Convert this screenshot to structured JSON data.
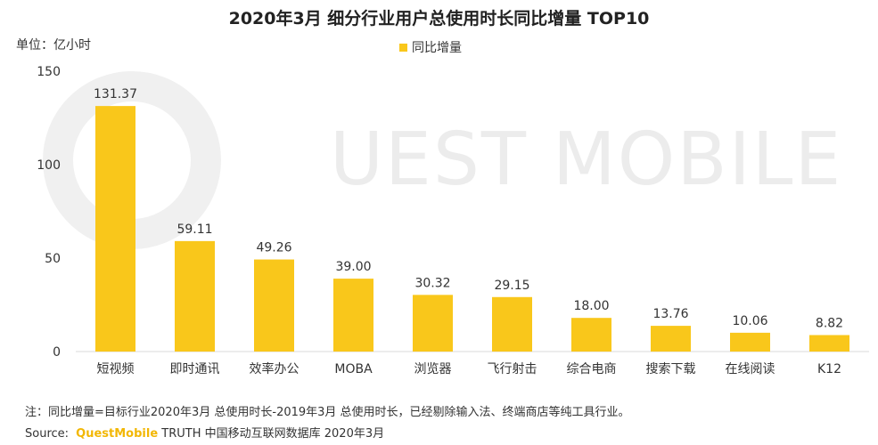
{
  "title": "2020年3月 细分行业用户总使用时长同比增量 TOP10",
  "unit": "单位：亿小时",
  "legend_label": "同比增量",
  "note": "注：同比增量=目标行业2020年3月 总使用时长-2019年3月 总使用时长，已经剔除输入法、终端商店等纯工具行业。",
  "source": {
    "label": "Source:",
    "brand": "QuestMobile",
    "rest": " TRUTH 中国移动互联网数据库 2020年3月"
  },
  "watermark": "UEST MOBILE",
  "bar_color": "#f9c71b",
  "chart_data": {
    "type": "bar",
    "title": "2020年3月 细分行业用户总使用时长同比增量 TOP10",
    "ylabel": "单位：亿小时",
    "ylim": [
      0,
      150
    ],
    "yticks": [
      0,
      50,
      100,
      150
    ],
    "grid": false,
    "legend": "top-center",
    "series": [
      {
        "name": "同比增量",
        "values": [
          131.37,
          59.11,
          49.26,
          39.0,
          30.32,
          29.15,
          18.0,
          13.76,
          10.06,
          8.82
        ],
        "labels": [
          "131.37",
          "59.11",
          "49.26",
          "39.00",
          "30.32",
          "29.15",
          "18.00",
          "13.76",
          "10.06",
          "8.82"
        ]
      }
    ],
    "categories": [
      "短视频",
      "即时通讯",
      "效率办公",
      "MOBA",
      "浏览器",
      "飞行射击",
      "综合电商",
      "搜索下载",
      "在线阅读",
      "K12"
    ]
  }
}
